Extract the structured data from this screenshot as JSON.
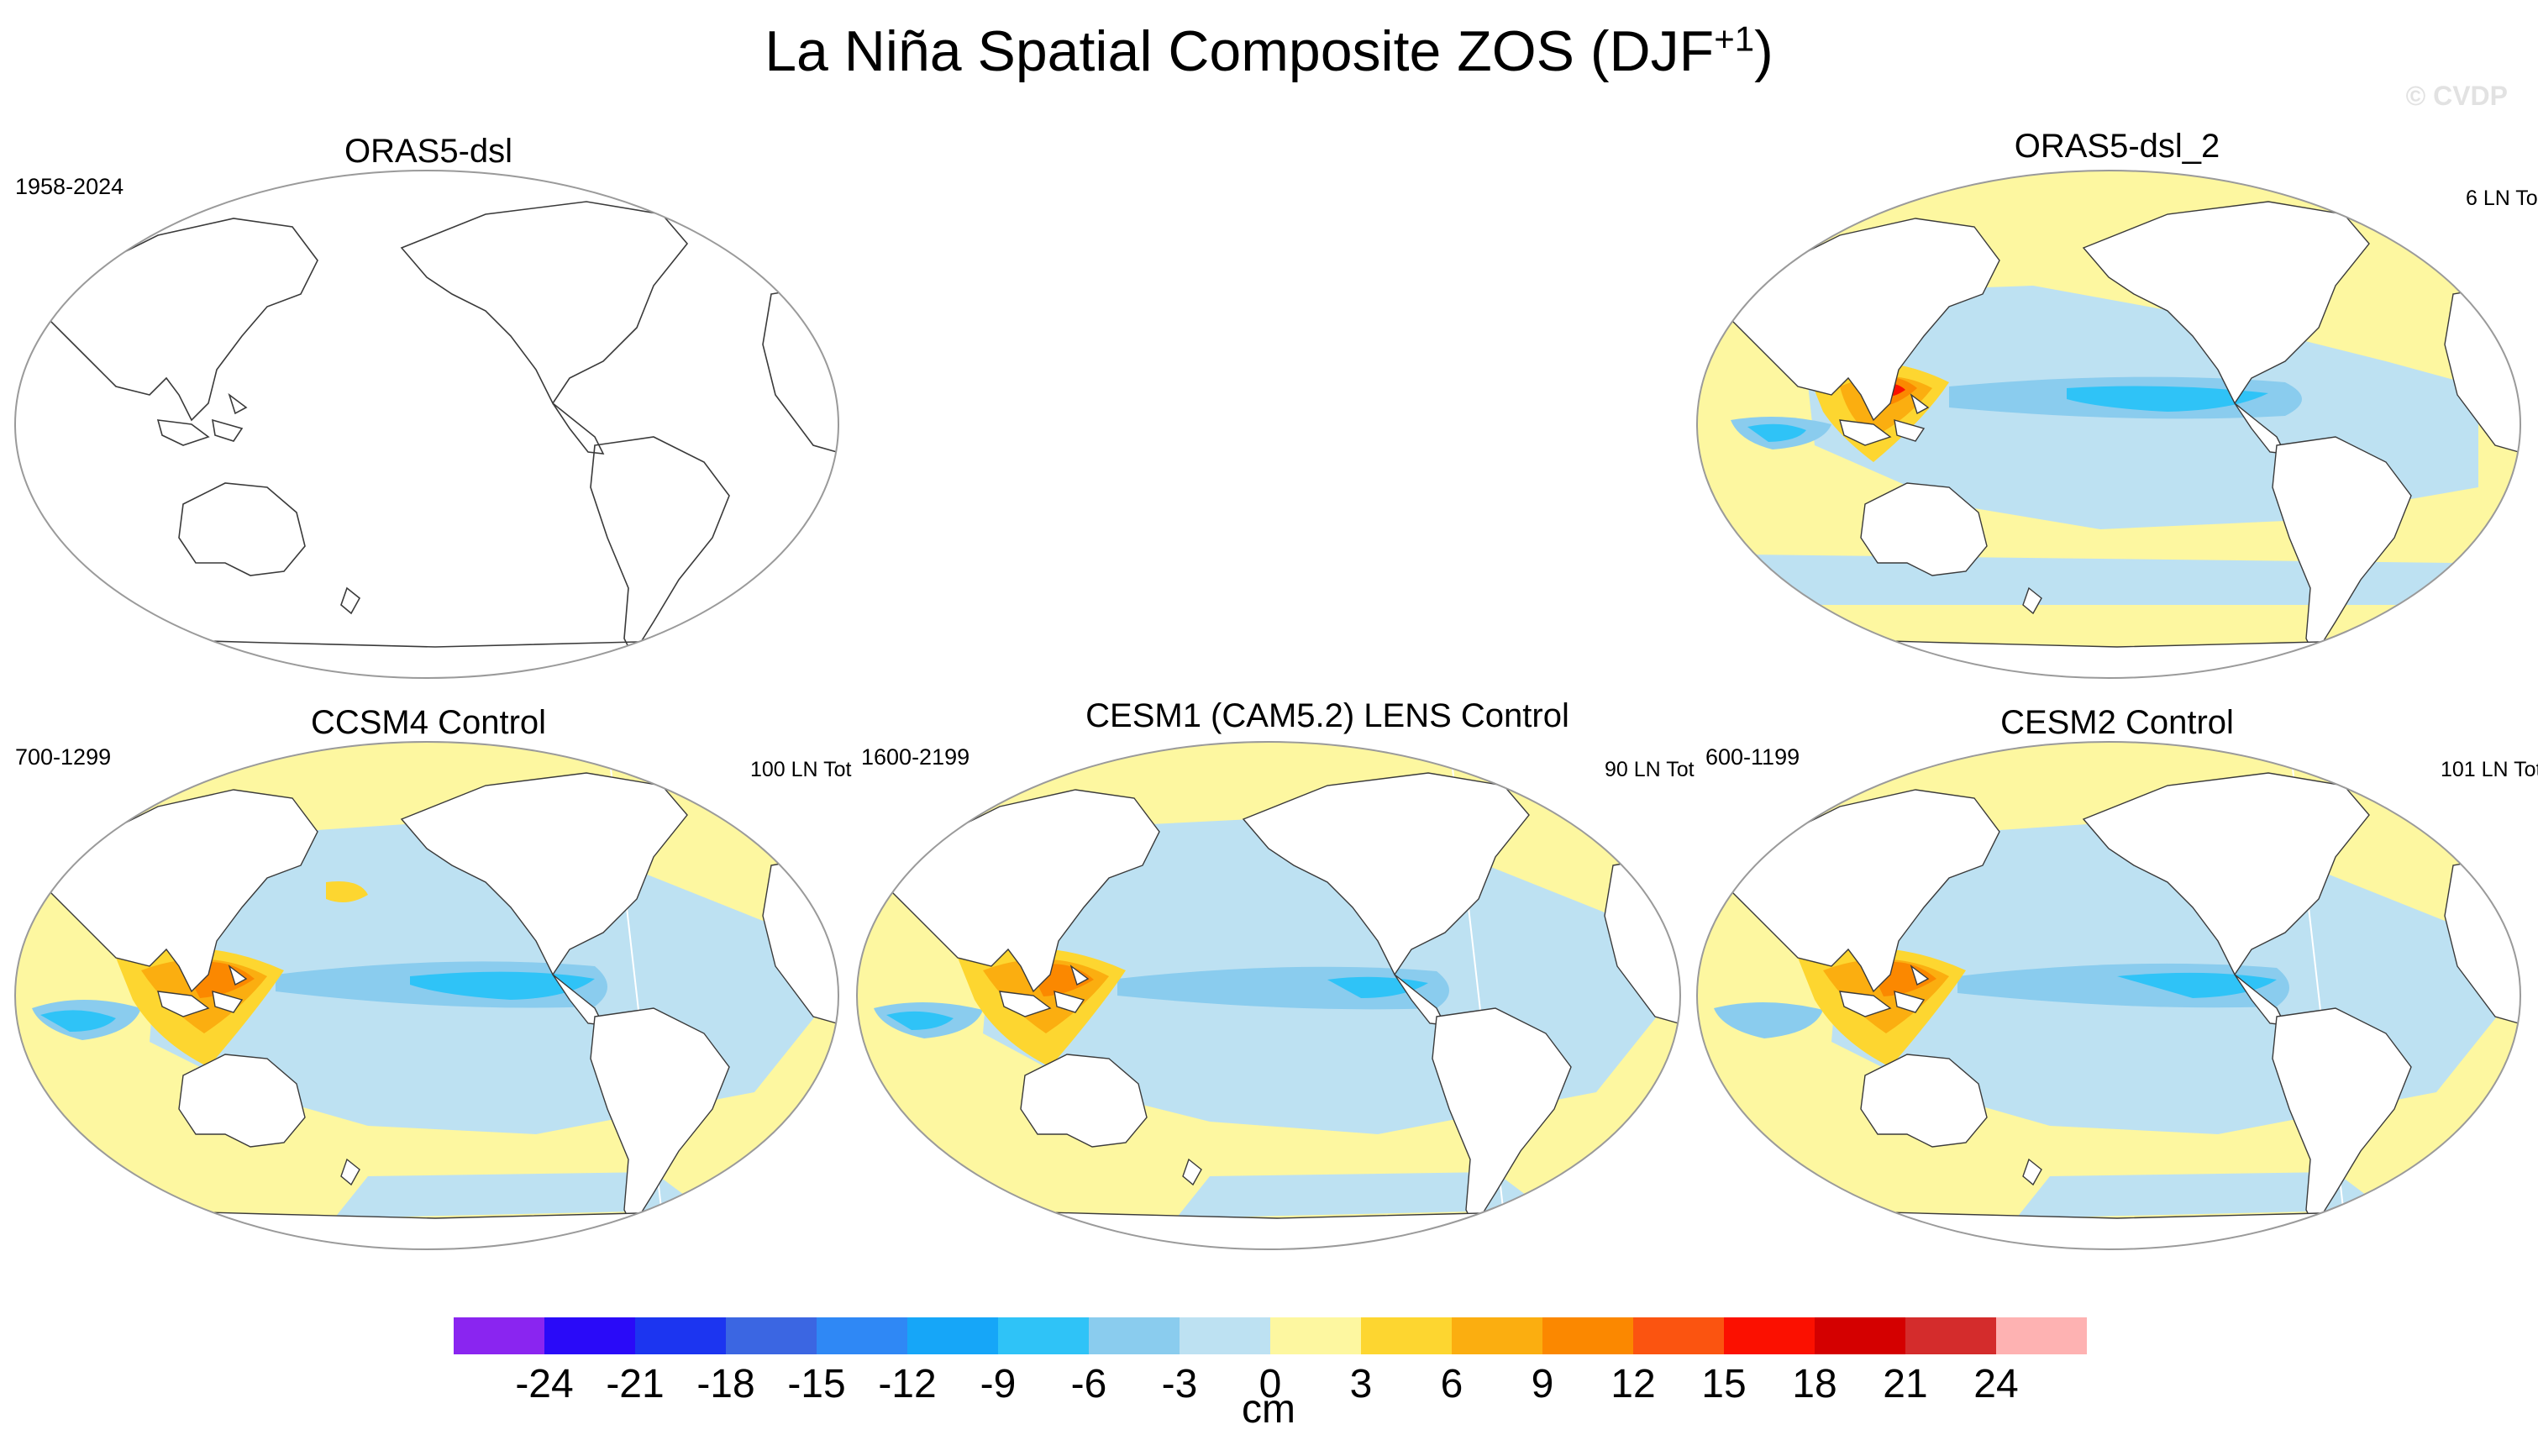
{
  "figure": {
    "title_main": "La Niña Spatial Composite ZOS (DJF",
    "title_sup": "+1",
    "title_close": ")",
    "watermark": "© CVDP"
  },
  "panels": [
    {
      "id": "p1",
      "title": "ORAS5-dsl",
      "range": "1958-2024",
      "count": "",
      "has_data": false
    },
    {
      "id": "p2",
      "title": "ORAS5-dsl_2",
      "range": "",
      "count": "6 LN To",
      "has_data": true
    },
    {
      "id": "p3",
      "title": "CCSM4 Control",
      "range": "700-1299",
      "count": "100 LN Tot",
      "has_data": true
    },
    {
      "id": "p4",
      "title": "CESM1 (CAM5.2) LENS Control",
      "range": "1600-2199",
      "count": "90 LN Tot",
      "has_data": true
    },
    {
      "id": "p5",
      "title": "CESM2 Control",
      "range": "600-1199",
      "count": "101 LN Tot",
      "has_data": true
    }
  ],
  "colorbar": {
    "unit": "cm",
    "labels": [
      "-24",
      "-21",
      "-18",
      "-15",
      "-12",
      "-9",
      "-6",
      "-3",
      "0",
      "3",
      "6",
      "9",
      "12",
      "15",
      "18",
      "21",
      "24"
    ],
    "colors": [
      "#8a25f0",
      "#2a0af8",
      "#1c35f0",
      "#3b66e2",
      "#2f88f5",
      "#16a6f8",
      "#2fc3f7",
      "#8accee",
      "#bde1f2",
      "#fdf7a0",
      "#fdd630",
      "#fbae10",
      "#fb8800",
      "#fb5410",
      "#fb1000",
      "#d40000",
      "#d42c2c",
      "#feb2b2"
    ],
    "value_ranges": [
      "<-24",
      "-24 to -21",
      "-21 to -18",
      "-18 to -15",
      "-15 to -12",
      "-12 to -9",
      "-9 to -6",
      "-6 to -3",
      "-3 to 0",
      "0 to 3",
      "3 to 6",
      "6 to 9",
      "9 to 12",
      "12 to 15",
      "15 to 18",
      "18 to 21",
      "21 to 24",
      ">24"
    ]
  }
}
